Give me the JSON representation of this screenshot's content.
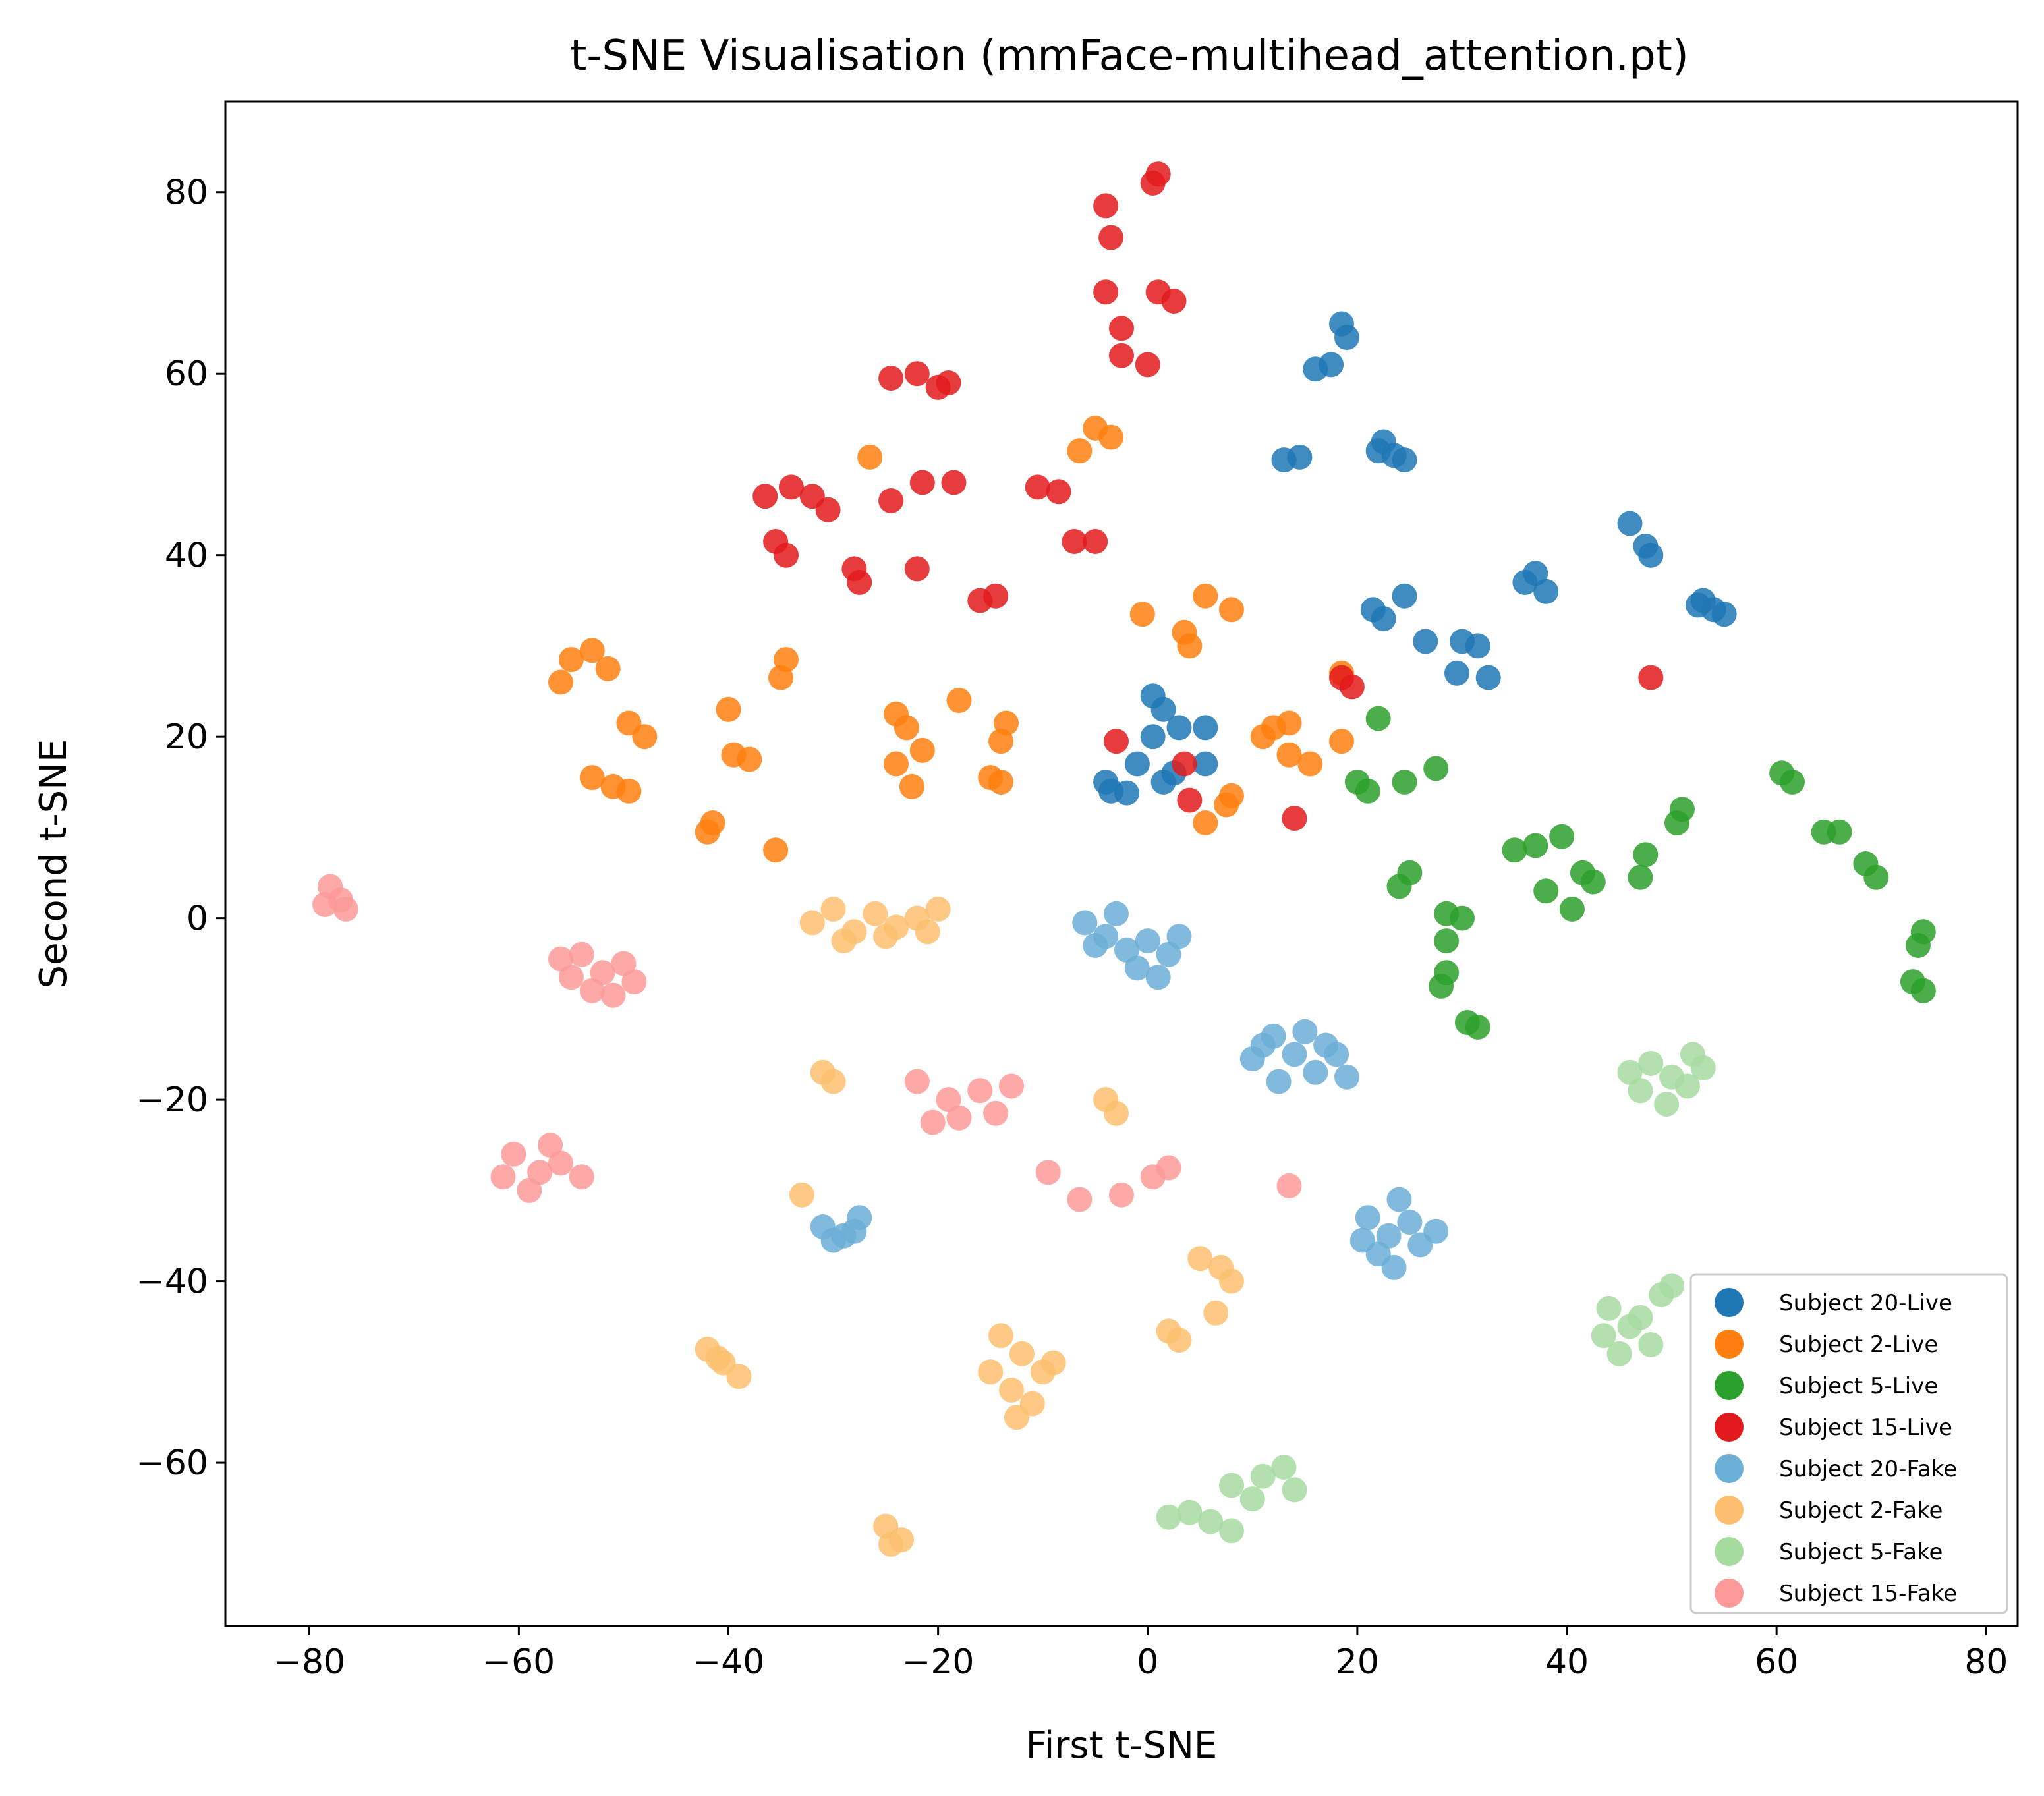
{
  "chart_data": {
    "type": "scatter",
    "title": "t-SNE Visualisation (mmFace-multihead_attention.pt)",
    "xlabel": "First t-SNE",
    "ylabel": "Second t-SNE",
    "xlim": [
      -88,
      83
    ],
    "ylim": [
      -78,
      90
    ],
    "x_ticks": [
      -80,
      -60,
      -40,
      -20,
      0,
      20,
      40,
      60,
      80
    ],
    "x_tick_labels": [
      "−80",
      "−60",
      "−40",
      "−20",
      "0",
      "20",
      "40",
      "60",
      "80"
    ],
    "y_ticks": [
      -60,
      -40,
      -20,
      0,
      20,
      40,
      60,
      80
    ],
    "y_tick_labels": [
      "−60",
      "−40",
      "−20",
      "0",
      "20",
      "40",
      "60",
      "80"
    ],
    "grid": false,
    "legend_position": "lower-right",
    "series": [
      {
        "name": "Subject 20-Live",
        "color": "#1f77b4",
        "points": [
          [
            18.5,
            65.5
          ],
          [
            19.0,
            64.0
          ],
          [
            17.5,
            61.0
          ],
          [
            16.0,
            60.5
          ],
          [
            13.0,
            50.5
          ],
          [
            14.5,
            50.8
          ],
          [
            22.5,
            52.5
          ],
          [
            23.5,
            51.0
          ],
          [
            24.5,
            50.5
          ],
          [
            22.0,
            51.5
          ],
          [
            46.0,
            43.5
          ],
          [
            47.5,
            41.0
          ],
          [
            48.0,
            40.0
          ],
          [
            37.0,
            38.0
          ],
          [
            38.0,
            36.0
          ],
          [
            36.0,
            37.0
          ],
          [
            53.0,
            35.0
          ],
          [
            54.0,
            34.0
          ],
          [
            52.5,
            34.5
          ],
          [
            55.0,
            33.5
          ],
          [
            24.5,
            35.5
          ],
          [
            21.5,
            34.0
          ],
          [
            22.5,
            33.0
          ],
          [
            26.5,
            30.5
          ],
          [
            30.0,
            30.5
          ],
          [
            31.5,
            30.0
          ],
          [
            29.5,
            27.0
          ],
          [
            32.5,
            26.5
          ],
          [
            0.5,
            24.5
          ],
          [
            1.5,
            23.0
          ],
          [
            3.0,
            21.0
          ],
          [
            5.5,
            21.0
          ],
          [
            -4.0,
            15.0
          ],
          [
            -3.5,
            14.0
          ],
          [
            1.5,
            15.0
          ],
          [
            2.5,
            16.0
          ],
          [
            -1.0,
            17.0
          ],
          [
            5.5,
            17.0
          ],
          [
            -2.0,
            13.8
          ],
          [
            0.5,
            20.0
          ]
        ]
      },
      {
        "name": "Subject 2-Live",
        "color": "#ff7f0e",
        "points": [
          [
            -5.0,
            54.0
          ],
          [
            -3.5,
            53.0
          ],
          [
            -6.5,
            51.5
          ],
          [
            -26.5,
            50.8
          ],
          [
            -55.0,
            28.5
          ],
          [
            -53.0,
            29.5
          ],
          [
            -51.5,
            27.5
          ],
          [
            -56.0,
            26.0
          ],
          [
            -34.5,
            28.5
          ],
          [
            -35.0,
            26.5
          ],
          [
            -49.5,
            21.5
          ],
          [
            -48.0,
            20.0
          ],
          [
            -53.0,
            15.5
          ],
          [
            -51.0,
            14.5
          ],
          [
            -49.5,
            14.0
          ],
          [
            -40.0,
            23.0
          ],
          [
            -39.5,
            18.0
          ],
          [
            -38.0,
            17.5
          ],
          [
            -41.5,
            10.5
          ],
          [
            -42.0,
            9.5
          ],
          [
            -35.5,
            7.5
          ],
          [
            -24.0,
            22.5
          ],
          [
            -23.0,
            21.0
          ],
          [
            -21.5,
            18.5
          ],
          [
            -18.0,
            24.0
          ],
          [
            -13.5,
            21.5
          ],
          [
            -14.0,
            19.5
          ],
          [
            -15.0,
            15.5
          ],
          [
            -14.0,
            15.0
          ],
          [
            -22.5,
            14.5
          ],
          [
            -24.0,
            17.0
          ],
          [
            5.5,
            35.5
          ],
          [
            8.0,
            34.0
          ],
          [
            -0.5,
            33.5
          ],
          [
            3.5,
            31.5
          ],
          [
            4.0,
            30.0
          ],
          [
            12.0,
            21.0
          ],
          [
            13.5,
            21.5
          ],
          [
            11.0,
            20.0
          ],
          [
            13.5,
            18.0
          ],
          [
            15.5,
            17.0
          ],
          [
            18.5,
            19.5
          ],
          [
            18.5,
            27.0
          ],
          [
            5.5,
            10.5
          ],
          [
            7.5,
            12.5
          ],
          [
            8.0,
            13.5
          ]
        ]
      },
      {
        "name": "Subject 5-Live",
        "color": "#2ca02c",
        "points": [
          [
            22.0,
            22.0
          ],
          [
            20.0,
            15.0
          ],
          [
            21.0,
            14.0
          ],
          [
            24.5,
            15.0
          ],
          [
            27.5,
            16.5
          ],
          [
            25.0,
            5.0
          ],
          [
            24.0,
            3.5
          ],
          [
            35.0,
            7.5
          ],
          [
            37.0,
            8.0
          ],
          [
            39.5,
            9.0
          ],
          [
            41.5,
            5.0
          ],
          [
            38.0,
            3.0
          ],
          [
            40.5,
            1.0
          ],
          [
            42.5,
            4.0
          ],
          [
            28.5,
            0.5
          ],
          [
            30.0,
            0.0
          ],
          [
            28.5,
            -2.5
          ],
          [
            28.5,
            -6.0
          ],
          [
            28.0,
            -7.5
          ],
          [
            30.5,
            -11.5
          ],
          [
            31.5,
            -12.0
          ],
          [
            47.5,
            7.0
          ],
          [
            47.0,
            4.5
          ],
          [
            51.0,
            12.0
          ],
          [
            50.5,
            10.5
          ],
          [
            60.5,
            16.0
          ],
          [
            61.5,
            15.0
          ],
          [
            64.5,
            9.5
          ],
          [
            66.0,
            9.5
          ],
          [
            68.5,
            6.0
          ],
          [
            69.5,
            4.5
          ],
          [
            74.0,
            -1.5
          ],
          [
            73.5,
            -3.0
          ],
          [
            73.0,
            -7.0
          ],
          [
            74.0,
            -8.0
          ]
        ]
      },
      {
        "name": "Subject 15-Live",
        "color": "#e31a1c",
        "points": [
          [
            0.5,
            81.0
          ],
          [
            1.0,
            82.0
          ],
          [
            -4.0,
            78.5
          ],
          [
            -3.5,
            75.0
          ],
          [
            -4.0,
            69.0
          ],
          [
            1.0,
            69.0
          ],
          [
            2.5,
            68.0
          ],
          [
            -2.5,
            65.0
          ],
          [
            -2.5,
            62.0
          ],
          [
            0.0,
            61.0
          ],
          [
            -24.5,
            59.5
          ],
          [
            -22.0,
            60.0
          ],
          [
            -20.0,
            58.5
          ],
          [
            -19.0,
            59.0
          ],
          [
            -34.0,
            47.5
          ],
          [
            -32.0,
            46.5
          ],
          [
            -30.5,
            45.0
          ],
          [
            -36.5,
            46.5
          ],
          [
            -21.5,
            48.0
          ],
          [
            -24.5,
            46.0
          ],
          [
            -18.5,
            48.0
          ],
          [
            -10.5,
            47.5
          ],
          [
            -8.5,
            47.0
          ],
          [
            -7.0,
            41.5
          ],
          [
            -5.0,
            41.5
          ],
          [
            -35.5,
            41.5
          ],
          [
            -34.5,
            40.0
          ],
          [
            -28.0,
            38.5
          ],
          [
            -27.5,
            37.0
          ],
          [
            -22.0,
            38.5
          ],
          [
            -16.0,
            35.0
          ],
          [
            -14.5,
            35.5
          ],
          [
            -3.0,
            19.5
          ],
          [
            3.5,
            17.0
          ],
          [
            4.0,
            13.0
          ],
          [
            14.0,
            11.0
          ],
          [
            18.5,
            26.5
          ],
          [
            19.5,
            25.5
          ],
          [
            48.0,
            26.5
          ]
        ]
      },
      {
        "name": "Subject 20-Fake",
        "color": "#6baed6",
        "points": [
          [
            -6.0,
            -0.5
          ],
          [
            -4.0,
            -2.0
          ],
          [
            -2.0,
            -3.5
          ],
          [
            0.0,
            -2.5
          ],
          [
            2.0,
            -4.0
          ],
          [
            -1.0,
            -5.5
          ],
          [
            3.0,
            -2.0
          ],
          [
            -3.0,
            0.5
          ],
          [
            1.0,
            -6.5
          ],
          [
            -5.0,
            -3.0
          ],
          [
            10.0,
            -15.5
          ],
          [
            12.0,
            -13.0
          ],
          [
            14.0,
            -15.0
          ],
          [
            16.0,
            -17.0
          ],
          [
            18.0,
            -15.0
          ],
          [
            12.5,
            -18.0
          ],
          [
            15.0,
            -12.5
          ],
          [
            19.0,
            -17.5
          ],
          [
            11.0,
            -14.0
          ],
          [
            17.0,
            -14.0
          ],
          [
            21.0,
            -33.0
          ],
          [
            23.0,
            -35.0
          ],
          [
            25.0,
            -33.5
          ],
          [
            22.0,
            -37.0
          ],
          [
            26.0,
            -36.0
          ],
          [
            24.0,
            -31.0
          ],
          [
            20.5,
            -35.5
          ],
          [
            27.5,
            -34.5
          ],
          [
            23.5,
            -38.5
          ],
          [
            -31.0,
            -34.0
          ],
          [
            -29.0,
            -35.0
          ],
          [
            -27.5,
            -33.0
          ],
          [
            -30.0,
            -35.5
          ],
          [
            -28.0,
            -34.5
          ]
        ]
      },
      {
        "name": "Subject 2-Fake",
        "color": "#fdbf6f",
        "points": [
          [
            -32.0,
            -0.5
          ],
          [
            -30.0,
            1.0
          ],
          [
            -28.0,
            -1.5
          ],
          [
            -26.0,
            0.5
          ],
          [
            -24.0,
            -1.0
          ],
          [
            -22.0,
            0.0
          ],
          [
            -20.0,
            1.0
          ],
          [
            -29.0,
            -2.5
          ],
          [
            -25.0,
            -2.0
          ],
          [
            -21.0,
            -1.5
          ],
          [
            -31.0,
            -17.0
          ],
          [
            -30.0,
            -18.0
          ],
          [
            -4.0,
            -20.0
          ],
          [
            -3.0,
            -21.5
          ],
          [
            5.0,
            -37.5
          ],
          [
            7.0,
            -38.5
          ],
          [
            8.0,
            -40.0
          ],
          [
            6.5,
            -43.5
          ],
          [
            2.0,
            -45.5
          ],
          [
            3.0,
            -46.5
          ],
          [
            -14.0,
            -46.0
          ],
          [
            -12.0,
            -48.0
          ],
          [
            -10.0,
            -50.0
          ],
          [
            -13.0,
            -52.0
          ],
          [
            -11.0,
            -53.5
          ],
          [
            -9.0,
            -49.0
          ],
          [
            -12.5,
            -55.0
          ],
          [
            -15.0,
            -50.0
          ],
          [
            -42.0,
            -47.5
          ],
          [
            -40.5,
            -49.0
          ],
          [
            -39.0,
            -50.5
          ],
          [
            -41.0,
            -48.5
          ],
          [
            -25.0,
            -67.0
          ],
          [
            -23.5,
            -68.5
          ],
          [
            -24.5,
            -69.0
          ],
          [
            -33.0,
            -30.5
          ]
        ]
      },
      {
        "name": "Subject 5-Fake",
        "color": "#a6dba0",
        "points": [
          [
            48.0,
            -16.0
          ],
          [
            50.0,
            -17.5
          ],
          [
            52.0,
            -15.0
          ],
          [
            47.0,
            -19.0
          ],
          [
            49.5,
            -20.5
          ],
          [
            51.5,
            -18.5
          ],
          [
            53.0,
            -16.5
          ],
          [
            46.0,
            -17.0
          ],
          [
            44.0,
            -43.0
          ],
          [
            46.0,
            -45.0
          ],
          [
            48.0,
            -47.0
          ],
          [
            45.0,
            -48.0
          ],
          [
            49.0,
            -41.5
          ],
          [
            47.0,
            -44.0
          ],
          [
            50.0,
            -40.5
          ],
          [
            43.5,
            -46.0
          ],
          [
            8.0,
            -62.5
          ],
          [
            11.0,
            -61.5
          ],
          [
            13.0,
            -60.5
          ],
          [
            14.0,
            -63.0
          ],
          [
            4.0,
            -65.5
          ],
          [
            6.0,
            -66.5
          ],
          [
            2.0,
            -66.0
          ],
          [
            8.0,
            -67.5
          ],
          [
            10.0,
            -64.0
          ]
        ]
      },
      {
        "name": "Subject 15-Fake",
        "color": "#fb9a99",
        "points": [
          [
            -78.0,
            3.5
          ],
          [
            -77.0,
            2.0
          ],
          [
            -76.5,
            1.0
          ],
          [
            -78.5,
            1.5
          ],
          [
            -54.0,
            -4.0
          ],
          [
            -52.0,
            -6.0
          ],
          [
            -50.0,
            -5.0
          ],
          [
            -53.0,
            -8.0
          ],
          [
            -55.0,
            -6.5
          ],
          [
            -51.0,
            -8.5
          ],
          [
            -49.0,
            -7.0
          ],
          [
            -56.0,
            -4.5
          ],
          [
            -60.5,
            -26.0
          ],
          [
            -58.0,
            -28.0
          ],
          [
            -56.0,
            -27.0
          ],
          [
            -59.0,
            -30.0
          ],
          [
            -61.5,
            -28.5
          ],
          [
            -57.0,
            -25.0
          ],
          [
            -54.0,
            -28.5
          ],
          [
            -22.0,
            -18.0
          ],
          [
            -19.0,
            -20.0
          ],
          [
            -16.0,
            -19.0
          ],
          [
            -13.0,
            -18.5
          ],
          [
            -18.0,
            -22.0
          ],
          [
            -20.5,
            -22.5
          ],
          [
            -14.5,
            -21.5
          ],
          [
            -9.5,
            -28.0
          ],
          [
            -6.5,
            -31.0
          ],
          [
            -2.5,
            -30.5
          ],
          [
            0.5,
            -28.5
          ],
          [
            2.0,
            -27.5
          ],
          [
            13.5,
            -29.5
          ]
        ]
      }
    ]
  }
}
